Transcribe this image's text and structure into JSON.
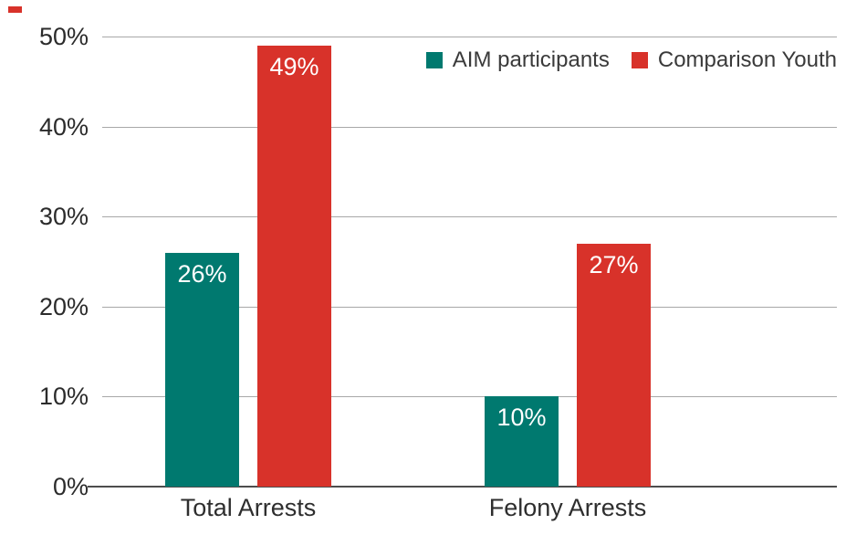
{
  "colors": {
    "teal": "#00796F",
    "red": "#D8322A",
    "gridline": "#A8A8A8",
    "axis_line": "#4D4D4D",
    "tick_text": "#2B2B2B",
    "category_text": "#2E2E2E",
    "legend_text": "#3A3A3A",
    "bar_value_text": "#FFFFFF",
    "background": "#FFFFFF"
  },
  "decorations": [
    {
      "name": "red-dash",
      "color": "#D8322A"
    }
  ],
  "legend": {
    "position": "top-right",
    "items": [
      {
        "label": "AIM participants",
        "color": "#00796F"
      },
      {
        "label": "Comparison Youth",
        "color": "#D8322A"
      }
    ]
  },
  "chart_data": {
    "type": "bar",
    "title": "",
    "xlabel": "",
    "ylabel": "",
    "categories": [
      "Total Arrests",
      "Felony Arrests"
    ],
    "series": [
      {
        "name": "AIM participants",
        "color": "#00796F",
        "values": [
          26,
          10
        ],
        "value_labels": [
          "26%",
          "10%"
        ]
      },
      {
        "name": "Comparison Youth",
        "color": "#D8322A",
        "values": [
          49,
          27
        ],
        "value_labels": [
          "49%",
          "27%"
        ]
      }
    ],
    "ylim": [
      0,
      50
    ],
    "yticks": [
      0,
      10,
      20,
      30,
      40,
      50
    ],
    "ytick_labels": [
      "0%",
      "10%",
      "20%",
      "30%",
      "40%",
      "50%"
    ],
    "grid": true,
    "legend_position": "top-right"
  }
}
